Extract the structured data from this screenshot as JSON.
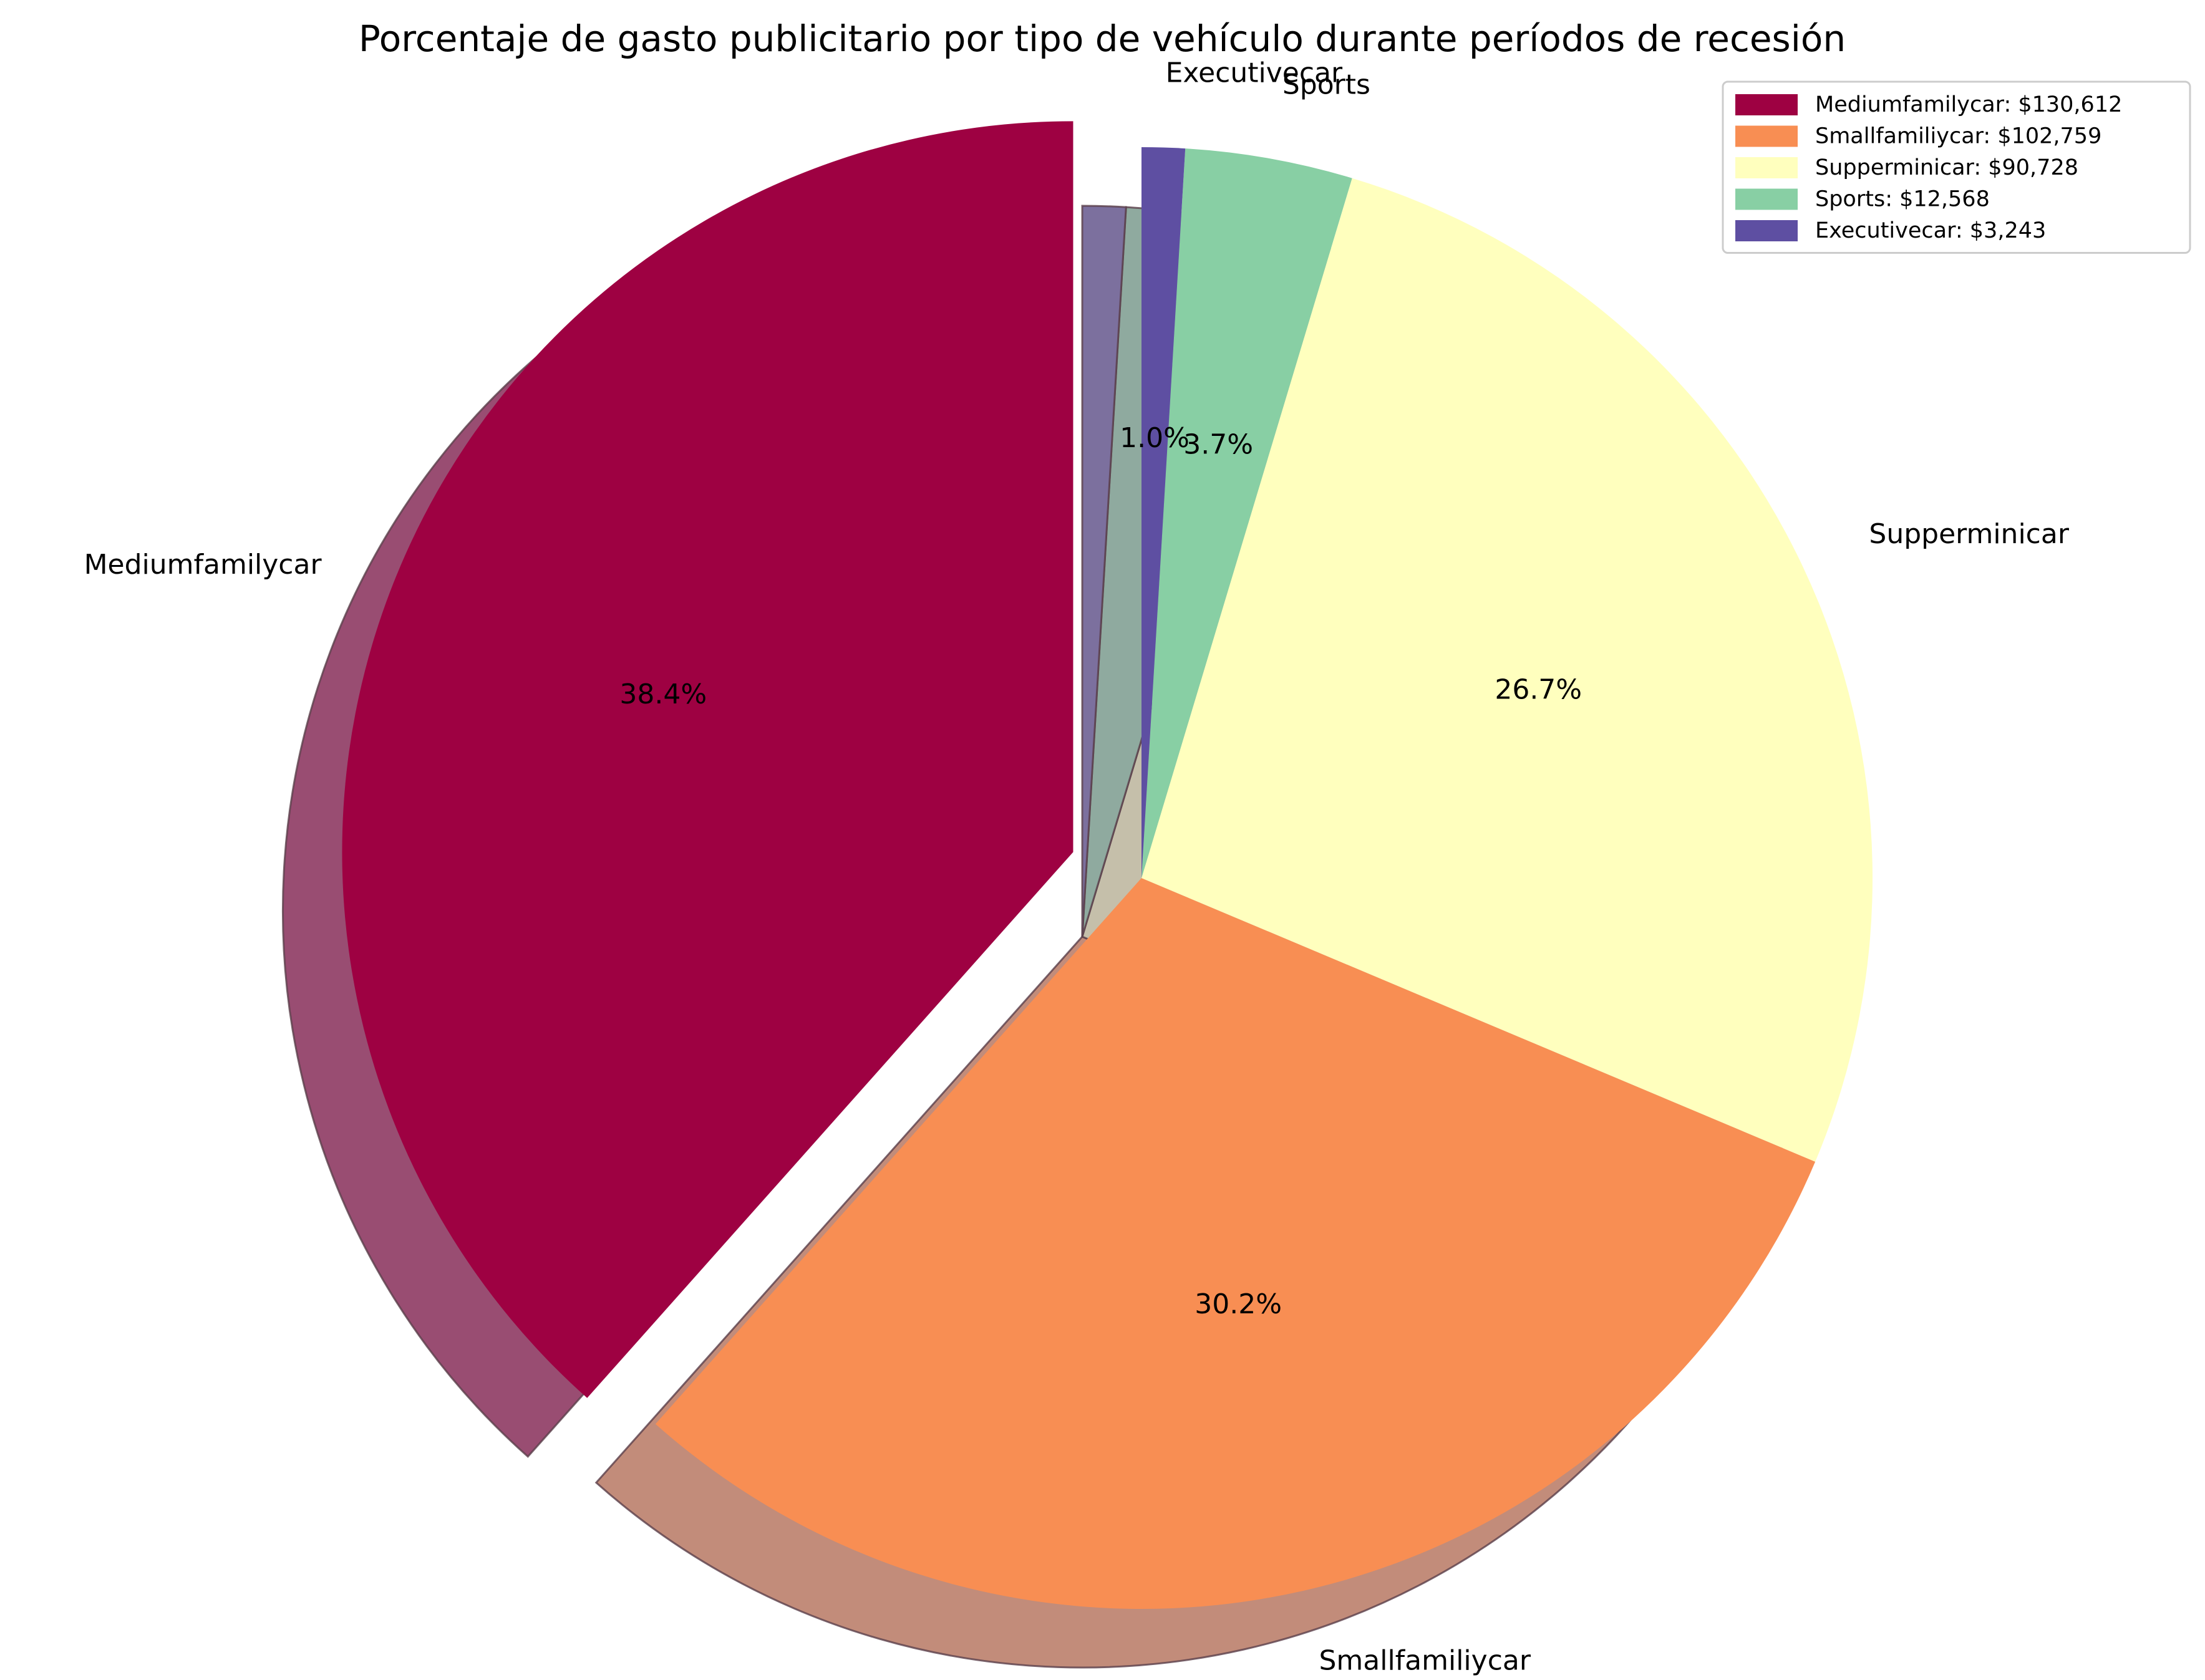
{
  "chart_data": {
    "type": "pie",
    "title": "Porcentaje de gasto publicitario por tipo de vehículo durante períodos de recesión",
    "start_angle_deg": 90,
    "direction": "counterclockwise",
    "shadow": true,
    "exploded": "Mediumfamilycar",
    "slices": [
      {
        "label": "Mediumfamilycar",
        "value": 130612,
        "percent_label": "38.4%",
        "color": "#9e0142"
      },
      {
        "label": "Smallfamiliycar",
        "value": 102759,
        "percent_label": "30.2%",
        "color": "#f88e53"
      },
      {
        "label": "Supperminicar",
        "value": 90728,
        "percent_label": "26.7%",
        "color": "#ffffbe"
      },
      {
        "label": "Sports",
        "value": 12568,
        "percent_label": "3.7%",
        "color": "#88cfa4"
      },
      {
        "label": "Executivecar",
        "value": 3243,
        "percent_label": "1.0%",
        "color": "#5e4fa2"
      }
    ],
    "legend": {
      "placement": "top-right",
      "entries": [
        "Mediumfamilycar: $130,612",
        "Smallfamiliycar: $102,759",
        "Supperminicar: $90,728",
        "Sports: $12,568",
        "Executivecar: $3,243"
      ]
    }
  }
}
